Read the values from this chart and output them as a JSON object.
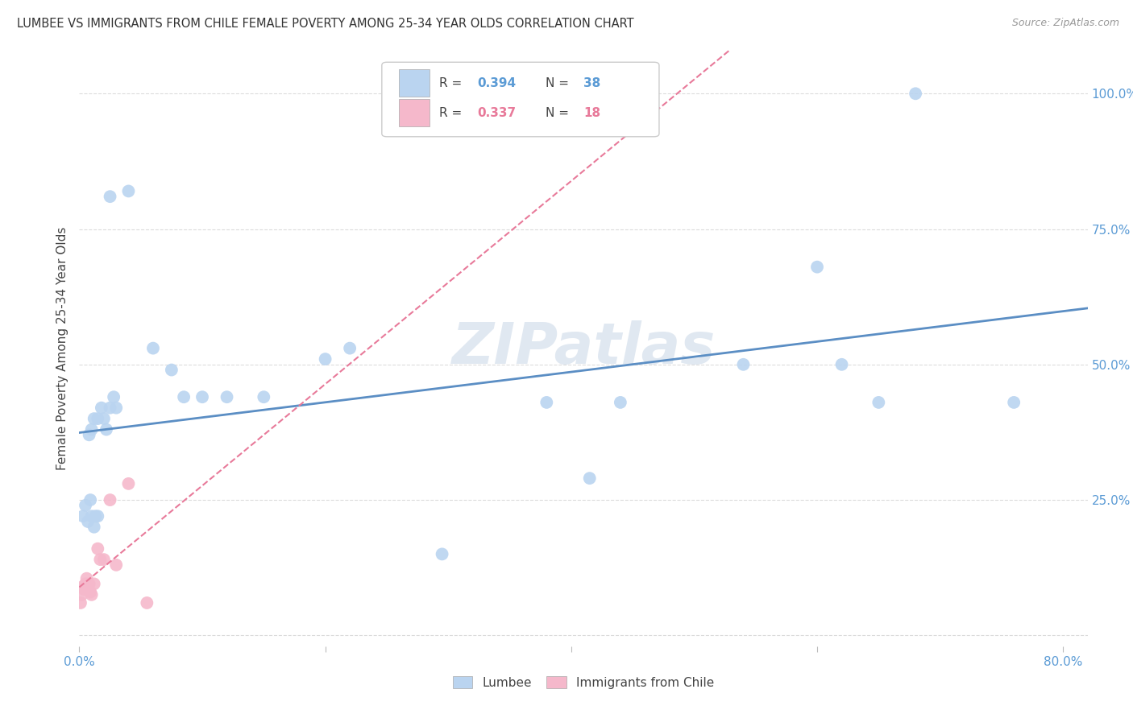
{
  "title": "LUMBEE VS IMMIGRANTS FROM CHILE FEMALE POVERTY AMONG 25-34 YEAR OLDS CORRELATION CHART",
  "source": "Source: ZipAtlas.com",
  "ylabel": "Female Poverty Among 25-34 Year Olds",
  "xlim": [
    0.0,
    0.82
  ],
  "ylim": [
    -0.02,
    1.08
  ],
  "watermark": "ZIPatlas",
  "lumbee_color": "#bad4f0",
  "chile_color": "#f5b8cb",
  "lumbee_line_color": "#5b8ec4",
  "chile_line_color": "#e87a9a",
  "watermark_color": "#ccd9e8",
  "background_color": "#ffffff",
  "grid_color": "#d8d8d8",
  "lumbee_R": "0.394",
  "lumbee_N": "38",
  "chile_R": "0.337",
  "chile_N": "18",
  "lumbee_x": [
    0.003,
    0.005,
    0.007,
    0.009,
    0.01,
    0.012,
    0.013,
    0.015,
    0.008,
    0.01,
    0.012,
    0.015,
    0.018,
    0.02,
    0.022,
    0.025,
    0.028,
    0.03,
    0.025,
    0.04,
    0.06,
    0.075,
    0.085,
    0.1,
    0.12,
    0.15,
    0.2,
    0.22,
    0.38,
    0.415,
    0.44,
    0.54,
    0.62,
    0.65,
    0.68,
    0.76,
    0.6,
    0.295
  ],
  "lumbee_y": [
    0.22,
    0.24,
    0.21,
    0.25,
    0.22,
    0.2,
    0.22,
    0.22,
    0.37,
    0.38,
    0.4,
    0.4,
    0.42,
    0.4,
    0.38,
    0.42,
    0.44,
    0.42,
    0.81,
    0.82,
    0.53,
    0.49,
    0.44,
    0.44,
    0.44,
    0.44,
    0.51,
    0.53,
    0.43,
    0.29,
    0.43,
    0.5,
    0.5,
    0.43,
    1.0,
    0.43,
    0.68,
    0.15
  ],
  "chile_x": [
    0.001,
    0.002,
    0.003,
    0.004,
    0.005,
    0.006,
    0.007,
    0.008,
    0.009,
    0.01,
    0.012,
    0.015,
    0.017,
    0.02,
    0.025,
    0.03,
    0.04,
    0.055
  ],
  "chile_y": [
    0.06,
    0.075,
    0.09,
    0.085,
    0.095,
    0.105,
    0.09,
    0.095,
    0.08,
    0.075,
    0.095,
    0.16,
    0.14,
    0.14,
    0.25,
    0.13,
    0.28,
    0.06
  ]
}
